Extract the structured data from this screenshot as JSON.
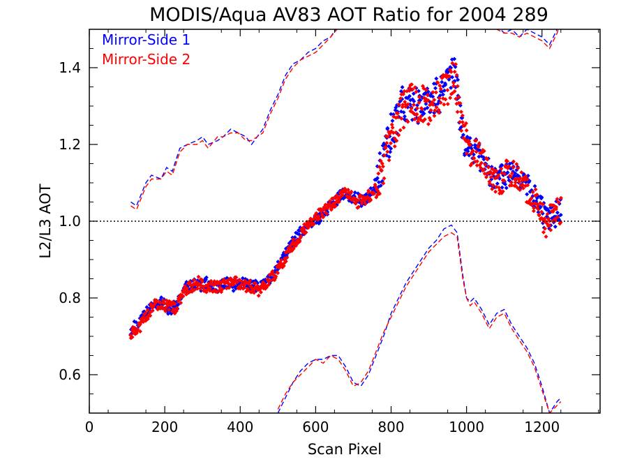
{
  "chart_data": {
    "type": "scatter",
    "title": "MODIS/Aqua AV83 AOT Ratio for 2004 289",
    "xlabel": "Scan Pixel",
    "ylabel": "L2/L3 AOT",
    "xlim": [
      0,
      1354
    ],
    "ylim": [
      0.5,
      1.5
    ],
    "xticks": [
      0,
      200,
      400,
      600,
      800,
      1000,
      1200
    ],
    "yticks": [
      0.6,
      0.8,
      1.0,
      1.2,
      1.4
    ],
    "xtick_labels": [
      "0",
      "200",
      "400",
      "600",
      "800",
      "1000",
      "1200"
    ],
    "ytick_labels": [
      "0.6",
      "0.8",
      "1.0",
      "1.2",
      "1.4"
    ],
    "reference_line": {
      "y": 1.0,
      "style": "dotted"
    },
    "legend_position": "top-left",
    "colors": {
      "mirror_side_1": "#0000ff",
      "mirror_side_2": "#ff0000"
    },
    "series": [
      {
        "name": "Mirror-Side 1",
        "color": "#0000ff",
        "marker": "diamond",
        "mean_x": [
          110,
          130,
          150,
          170,
          190,
          210,
          230,
          250,
          270,
          290,
          310,
          330,
          350,
          370,
          390,
          410,
          430,
          450,
          470,
          490,
          510,
          530,
          550,
          570,
          590,
          610,
          630,
          650,
          670,
          690,
          710,
          730,
          750,
          770,
          790,
          810,
          830,
          850,
          870,
          890,
          910,
          930,
          950,
          970,
          990,
          1010,
          1030,
          1050,
          1070,
          1090,
          1110,
          1130,
          1150,
          1170,
          1190,
          1210,
          1230,
          1250
        ],
        "mean_y": [
          0.72,
          0.73,
          0.76,
          0.78,
          0.79,
          0.77,
          0.78,
          0.82,
          0.84,
          0.83,
          0.84,
          0.83,
          0.83,
          0.84,
          0.83,
          0.84,
          0.83,
          0.83,
          0.84,
          0.86,
          0.9,
          0.93,
          0.96,
          0.98,
          1.0,
          1.01,
          1.03,
          1.05,
          1.07,
          1.06,
          1.06,
          1.05,
          1.08,
          1.13,
          1.2,
          1.26,
          1.3,
          1.32,
          1.3,
          1.31,
          1.32,
          1.33,
          1.36,
          1.38,
          1.22,
          1.19,
          1.18,
          1.14,
          1.12,
          1.11,
          1.12,
          1.12,
          1.1,
          1.08,
          1.05,
          1.0,
          1.01,
          1.03
        ],
        "upper_band": [
          1.05,
          1.04,
          1.1,
          1.12,
          1.11,
          1.14,
          1.13,
          1.19,
          1.2,
          1.21,
          1.22,
          1.2,
          1.21,
          1.22,
          1.24,
          1.23,
          1.22,
          1.2,
          1.24,
          1.29,
          1.33,
          1.38,
          1.41,
          1.42,
          1.44,
          1.45,
          1.47,
          1.48,
          1.52
        ],
        "upper_band_x": [
          110,
          125,
          150,
          165,
          190,
          205,
          220,
          240,
          260,
          285,
          300,
          315,
          340,
          355,
          375,
          395,
          415,
          430,
          460,
          480,
          500,
          520,
          540,
          560,
          580,
          600,
          620,
          640,
          665
        ],
        "upper_band_right_x": [
          1060,
          1080,
          1100,
          1120,
          1140,
          1160,
          1180,
          1200,
          1220,
          1240,
          1250
        ],
        "upper_band_right": [
          1.52,
          1.51,
          1.49,
          1.5,
          1.48,
          1.5,
          1.49,
          1.48,
          1.46,
          1.5,
          1.52
        ],
        "lower_band_x": [
          500,
          520,
          540,
          560,
          580,
          600,
          620,
          640,
          660,
          680,
          700,
          720,
          740,
          760,
          780,
          800,
          820,
          840,
          860,
          880,
          900,
          920,
          940,
          960,
          975,
          990,
          1000,
          1010,
          1020,
          1040,
          1060,
          1080,
          1100,
          1120,
          1140,
          1160,
          1180,
          1200,
          1220,
          1240,
          1250
        ],
        "lower_band": [
          0.5,
          0.54,
          0.58,
          0.61,
          0.63,
          0.64,
          0.64,
          0.65,
          0.65,
          0.62,
          0.58,
          0.57,
          0.6,
          0.65,
          0.7,
          0.76,
          0.8,
          0.84,
          0.87,
          0.9,
          0.93,
          0.95,
          0.98,
          0.99,
          0.97,
          0.86,
          0.8,
          0.79,
          0.8,
          0.77,
          0.73,
          0.76,
          0.77,
          0.73,
          0.7,
          0.67,
          0.63,
          0.57,
          0.5,
          0.53,
          0.54
        ]
      },
      {
        "name": "Mirror-Side 2",
        "color": "#ff0000",
        "marker": "diamond",
        "mean_x": [
          110,
          130,
          150,
          170,
          190,
          210,
          230,
          250,
          270,
          290,
          310,
          330,
          350,
          370,
          390,
          410,
          430,
          450,
          470,
          490,
          510,
          530,
          550,
          570,
          590,
          610,
          630,
          650,
          670,
          690,
          710,
          730,
          750,
          770,
          790,
          810,
          830,
          850,
          870,
          890,
          910,
          930,
          950,
          970,
          990,
          1010,
          1030,
          1050,
          1070,
          1090,
          1110,
          1130,
          1150,
          1170,
          1190,
          1210,
          1230,
          1250
        ],
        "mean_y": [
          0.71,
          0.72,
          0.75,
          0.78,
          0.78,
          0.78,
          0.77,
          0.82,
          0.83,
          0.84,
          0.83,
          0.83,
          0.83,
          0.84,
          0.84,
          0.83,
          0.83,
          0.82,
          0.84,
          0.86,
          0.89,
          0.92,
          0.95,
          0.98,
          1.0,
          1.02,
          1.03,
          1.05,
          1.07,
          1.07,
          1.05,
          1.06,
          1.07,
          1.12,
          1.18,
          1.24,
          1.29,
          1.31,
          1.31,
          1.3,
          1.3,
          1.32,
          1.35,
          1.37,
          1.24,
          1.18,
          1.18,
          1.15,
          1.11,
          1.1,
          1.13,
          1.12,
          1.09,
          1.07,
          1.04,
          0.99,
          1.02,
          1.03
        ],
        "upper_band_x": [
          110,
          125,
          150,
          165,
          190,
          205,
          220,
          240,
          260,
          285,
          300,
          315,
          340,
          355,
          375,
          395,
          415,
          430,
          460,
          480,
          500,
          520,
          540,
          560,
          580,
          600,
          620,
          640,
          665
        ],
        "upper_band": [
          1.04,
          1.03,
          1.09,
          1.11,
          1.11,
          1.13,
          1.12,
          1.18,
          1.2,
          1.2,
          1.21,
          1.19,
          1.22,
          1.22,
          1.23,
          1.23,
          1.21,
          1.21,
          1.23,
          1.28,
          1.32,
          1.37,
          1.4,
          1.42,
          1.43,
          1.44,
          1.46,
          1.48,
          1.51
        ],
        "upper_band_right_x": [
          1060,
          1080,
          1100,
          1120,
          1140,
          1160,
          1180,
          1200,
          1220,
          1240,
          1250
        ],
        "upper_band_right": [
          1.51,
          1.5,
          1.49,
          1.49,
          1.48,
          1.49,
          1.48,
          1.47,
          1.45,
          1.49,
          1.52
        ],
        "lower_band_x": [
          500,
          520,
          540,
          560,
          580,
          600,
          620,
          640,
          660,
          680,
          700,
          720,
          740,
          760,
          780,
          800,
          820,
          840,
          860,
          880,
          900,
          920,
          940,
          960,
          975,
          990,
          1000,
          1010,
          1020,
          1040,
          1060,
          1080,
          1100,
          1120,
          1140,
          1160,
          1180,
          1200,
          1220,
          1240,
          1250
        ],
        "lower_band": [
          0.51,
          0.55,
          0.58,
          0.6,
          0.62,
          0.64,
          0.63,
          0.65,
          0.64,
          0.61,
          0.57,
          0.58,
          0.61,
          0.66,
          0.71,
          0.75,
          0.79,
          0.83,
          0.86,
          0.89,
          0.92,
          0.94,
          0.96,
          0.97,
          0.96,
          0.85,
          0.8,
          0.78,
          0.79,
          0.76,
          0.72,
          0.75,
          0.76,
          0.72,
          0.69,
          0.66,
          0.62,
          0.56,
          0.5,
          0.52,
          0.53
        ]
      }
    ]
  }
}
